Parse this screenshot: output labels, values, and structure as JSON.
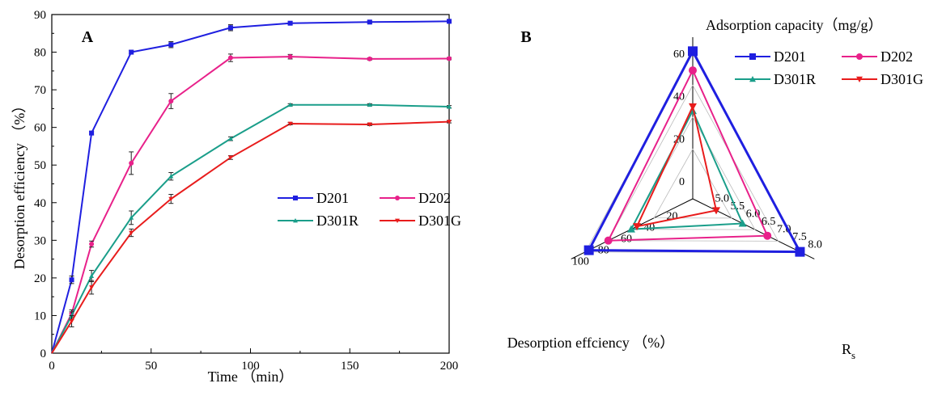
{
  "chart_data": [
    {
      "type": "line",
      "panel_label": "A",
      "xlabel": "Time （min）",
      "ylabel": "Desorption efficiency （%）",
      "xlim": [
        0,
        200
      ],
      "ylim": [
        0,
        90
      ],
      "x_ticks": [
        0,
        50,
        100,
        150,
        200
      ],
      "y_ticks": [
        0,
        10,
        20,
        30,
        40,
        50,
        60,
        70,
        80,
        90
      ],
      "legend_position": "center-right",
      "series": [
        {
          "name": "D201",
          "color": "#1f1fe0",
          "marker": "square",
          "x": [
            0,
            10,
            20,
            40,
            60,
            90,
            120,
            160,
            200
          ],
          "y": [
            0,
            19.5,
            58.5,
            80,
            82,
            86.5,
            87.7,
            88,
            88.2
          ],
          "err": [
            0,
            1,
            0.5,
            0.5,
            0.8,
            0.8,
            0.4,
            0.3,
            0.3
          ]
        },
        {
          "name": "D202",
          "color": "#e8218a",
          "marker": "circle",
          "x": [
            0,
            10,
            20,
            40,
            60,
            90,
            120,
            160,
            200
          ],
          "y": [
            0,
            10.5,
            29,
            50.5,
            67,
            78.5,
            78.8,
            78.2,
            78.3
          ],
          "err": [
            0,
            1,
            0.8,
            3,
            2,
            1,
            0.6,
            0.3,
            0.3
          ]
        },
        {
          "name": "D301R",
          "color": "#1a9e8a",
          "marker": "triangle",
          "x": [
            0,
            10,
            20,
            40,
            60,
            90,
            120,
            160,
            200
          ],
          "y": [
            0,
            10,
            20.5,
            36,
            47,
            57,
            66,
            66,
            65.5
          ],
          "err": [
            0,
            1,
            1.5,
            1.8,
            1,
            0.5,
            0.3,
            0.3,
            0.3
          ]
        },
        {
          "name": "D301G",
          "color": "#e81c1c",
          "marker": "triangle-down",
          "x": [
            0,
            10,
            20,
            40,
            60,
            90,
            120,
            160,
            200
          ],
          "y": [
            0,
            8.5,
            17.5,
            32,
            41,
            52,
            61,
            60.8,
            61.5
          ],
          "err": [
            0,
            1.5,
            1.8,
            1,
            1.2,
            0.5,
            0.3,
            0.3,
            0.3
          ]
        }
      ]
    },
    {
      "type": "radar",
      "panel_label": "B",
      "axes": [
        {
          "label": "Adsorption capacity（mg/g）",
          "min": 0,
          "max": 60,
          "ticks": [
            0,
            20,
            40,
            60
          ]
        },
        {
          "label": "R",
          "label_sub": "s",
          "min": 5.0,
          "max": 8.0,
          "ticks": [
            5.0,
            5.5,
            6.0,
            6.5,
            7.0,
            7.5,
            8.0
          ]
        },
        {
          "label": "Desorption effciency （%）",
          "min": 20,
          "max": 100,
          "ticks": [
            20,
            40,
            60,
            80,
            100
          ]
        }
      ],
      "legend_position": "top-right",
      "series": [
        {
          "name": "D201",
          "color": "#1f1fe0",
          "marker": "square",
          "values": [
            61,
            7.95,
            97
          ]
        },
        {
          "name": "D202",
          "color": "#e8218a",
          "marker": "circle",
          "values": [
            52,
            6.9,
            80
          ]
        },
        {
          "name": "D301R",
          "color": "#1a9e8a",
          "marker": "triangle",
          "values": [
            33,
            6.1,
            60
          ]
        },
        {
          "name": "D301G",
          "color": "#e81c1c",
          "marker": "triangle-down",
          "values": [
            35,
            5.25,
            55
          ]
        }
      ]
    }
  ]
}
